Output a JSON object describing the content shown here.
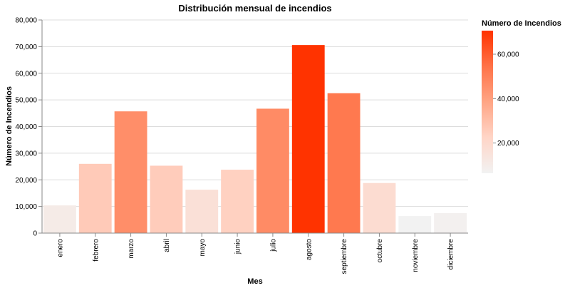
{
  "chart_data": {
    "type": "bar",
    "title": "Distribución mensual de incendios",
    "xlabel": "Mes",
    "ylabel": "Número de Incendios",
    "categories": [
      "enero",
      "febrero",
      "marzo",
      "abril",
      "mayo",
      "junio",
      "julio",
      "agosto",
      "septiembre",
      "octubre",
      "noviembre",
      "diciembre"
    ],
    "values": [
      10400,
      26000,
      45700,
      25300,
      16300,
      23800,
      46700,
      70600,
      52500,
      18800,
      6400,
      7500
    ],
    "ylim": [
      0,
      80000
    ],
    "yticks": [
      0,
      10000,
      20000,
      30000,
      40000,
      50000,
      60000,
      70000,
      80000
    ],
    "ytick_labels": [
      "0",
      "10,000",
      "20,000",
      "30,000",
      "40,000",
      "50,000",
      "60,000",
      "70,000",
      "80,000"
    ],
    "grid": true,
    "legend": {
      "title": "Número de Incendios",
      "placement": "right",
      "ticks": [
        20000,
        40000,
        60000
      ],
      "tick_labels": [
        "20,000",
        "40,000",
        "60,000"
      ],
      "range": [
        6400,
        70600
      ]
    },
    "colors": {
      "low": "#f2f2f2",
      "high": "#ff3300",
      "grid": "#dddddd",
      "axis": "#888888"
    }
  }
}
